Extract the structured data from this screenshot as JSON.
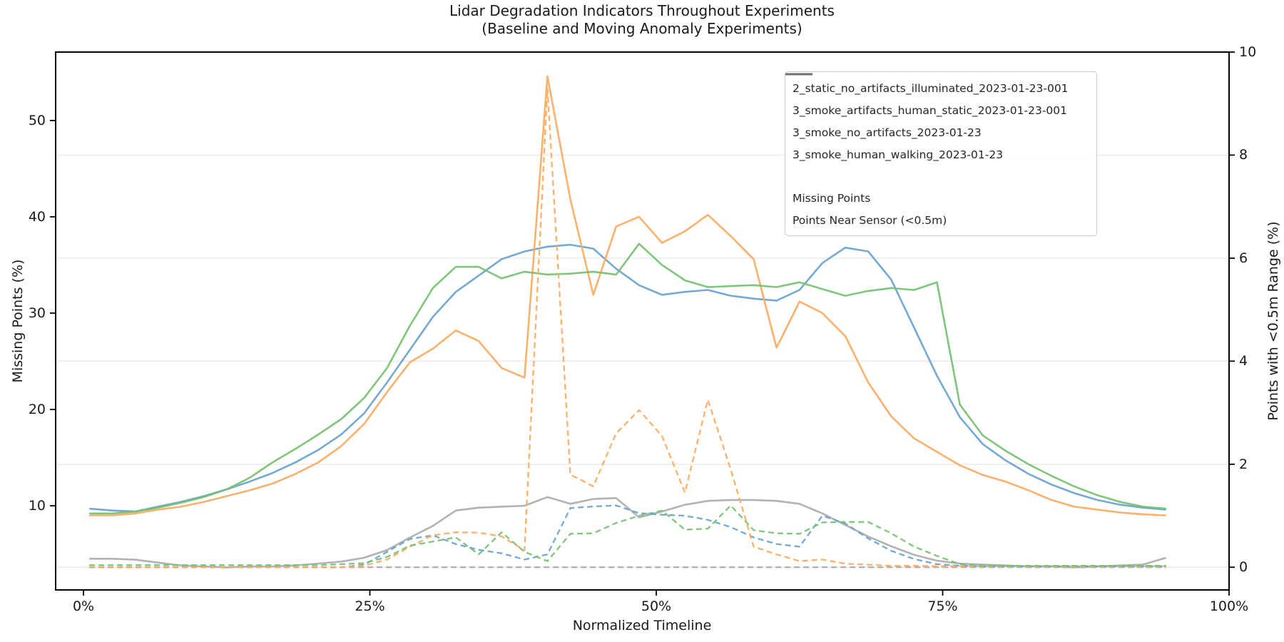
{
  "title": {
    "line1": "Lidar Degradation Indicators Throughout Experiments",
    "line2": "(Baseline and Moving Anomaly Experiments)"
  },
  "axes": {
    "x": {
      "label": "Normalized Timeline",
      "tick_values": [
        0,
        25,
        50,
        75,
        100
      ],
      "tick_labels": [
        "0%",
        "25%",
        "50%",
        "75%",
        "100%"
      ],
      "lim": [
        -2.43,
        100
      ]
    },
    "y_left": {
      "label": "Missing Points (%)",
      "tick_values": [
        10,
        20,
        30,
        40,
        50
      ],
      "lim": [
        1.26,
        57.1
      ]
    },
    "y_right": {
      "label": "Points with <0.5m Range (%)",
      "tick_values": [
        0,
        2,
        4,
        6,
        8,
        10
      ],
      "lim": [
        -0.44,
        10.0
      ]
    }
  },
  "legend": {
    "entries": [
      {
        "label": "2_static_no_artifacts_illuminated_2023-01-23-001",
        "color": "#ababab",
        "dash": "solid",
        "spacer": false
      },
      {
        "label": "3_smoke_artifacts_human_static_2023-01-23-001",
        "color": "#68a2cf",
        "dash": "solid",
        "spacer": false
      },
      {
        "label": "3_smoke_no_artifacts_2023-01-23",
        "color": "#fbaa60",
        "dash": "solid",
        "spacer": false
      },
      {
        "label": "3_smoke_human_walking_2023-01-23",
        "color": "#74c06f",
        "dash": "solid",
        "spacer": false
      },
      {
        "label": "",
        "color": "",
        "dash": "none",
        "spacer": true
      },
      {
        "label": "Missing Points",
        "color": "#6e6e6e",
        "dash": "solid",
        "spacer": false
      },
      {
        "label": "Points Near Sensor (<0.5m)",
        "color": "#6e6e6e",
        "dash": "dashed",
        "spacer": false
      }
    ]
  },
  "colors": {
    "grid": "#e7e7e7",
    "spine": "#000000",
    "text": "#1a1a1a",
    "baseline_gray": "#ababab",
    "smoke_static_blue": "#68a2cf",
    "smoke_no_artifacts_orange": "#fbaa60",
    "smoke_walking_green": "#74c06f",
    "metric_gray": "#6e6e6e"
  },
  "chart_data": {
    "type": "line",
    "title": "Lidar Degradation Indicators Throughout Experiments (Baseline and Moving Anomaly Experiments)",
    "xlabel": "Normalized Timeline",
    "ylabel_left": "Missing Points (%)",
    "ylabel_right": "Points with <0.5m Range (%)",
    "grid": "horizontal-from-right-axis",
    "legend_position": "upper right",
    "x_units": "percent of normalized timeline",
    "x": [
      0.5,
      2.5,
      4.5,
      6.5,
      8.5,
      10.5,
      12.5,
      14.5,
      16.5,
      18.5,
      20.5,
      22.5,
      24.5,
      26.5,
      28.5,
      30.5,
      32.5,
      34.5,
      36.5,
      38.5,
      40.5,
      42.5,
      44.5,
      46.5,
      48.5,
      50.5,
      52.5,
      54.5,
      56.5,
      58.5,
      60.5,
      62.5,
      64.5,
      66.5,
      68.5,
      70.5,
      72.5,
      74.5,
      76.5,
      78.5,
      80.5,
      82.5,
      84.5,
      86.5,
      88.5,
      90.5,
      92.5,
      94.5
    ],
    "series": [
      {
        "name": "2_static_no_artifacts_illuminated_2023-01-23-001",
        "metric": "Missing Points",
        "axis": "left",
        "style": "solid",
        "color": "#ababab",
        "values": [
          4.5,
          4.5,
          4.4,
          4.1,
          3.8,
          3.7,
          3.6,
          3.7,
          3.7,
          3.8,
          4.0,
          4.2,
          4.6,
          5.4,
          6.7,
          7.9,
          9.5,
          9.8,
          9.9,
          10.0,
          10.9,
          10.2,
          10.7,
          10.8,
          8.8,
          9.4,
          10.1,
          10.5,
          10.6,
          10.6,
          10.5,
          10.2,
          9.2,
          8.0,
          6.8,
          5.8,
          4.9,
          4.3,
          4.0,
          3.9,
          3.8,
          3.7,
          3.7,
          3.6,
          3.7,
          3.8,
          3.9,
          4.6
        ]
      },
      {
        "name": "3_smoke_artifacts_human_static_2023-01-23-001",
        "metric": "Missing Points",
        "axis": "left",
        "style": "solid",
        "color": "#68a2cf",
        "values": [
          9.7,
          9.5,
          9.4,
          9.9,
          10.4,
          11.0,
          11.7,
          12.5,
          13.4,
          14.5,
          15.8,
          17.4,
          19.6,
          22.8,
          26.2,
          29.6,
          32.2,
          33.9,
          35.6,
          36.4,
          36.9,
          37.1,
          36.7,
          34.6,
          32.9,
          31.9,
          32.2,
          32.4,
          31.8,
          31.5,
          31.3,
          32.4,
          35.2,
          36.8,
          36.4,
          33.5,
          28.5,
          23.5,
          19.2,
          16.4,
          14.7,
          13.3,
          12.2,
          11.3,
          10.6,
          10.1,
          9.8,
          9.6
        ]
      },
      {
        "name": "3_smoke_no_artifacts_2023-01-23",
        "metric": "Missing Points",
        "axis": "left",
        "style": "solid",
        "color": "#fbaa60",
        "values": [
          9.0,
          9.0,
          9.2,
          9.6,
          9.9,
          10.4,
          11.0,
          11.6,
          12.3,
          13.3,
          14.5,
          16.2,
          18.5,
          21.8,
          24.9,
          26.3,
          28.2,
          27.1,
          24.3,
          23.3,
          54.6,
          41.8,
          31.9,
          39.0,
          40.0,
          37.3,
          38.5,
          40.2,
          38.0,
          35.6,
          26.4,
          31.2,
          30.0,
          27.6,
          22.8,
          19.3,
          17.0,
          15.6,
          14.2,
          13.2,
          12.5,
          11.6,
          10.6,
          9.9,
          9.6,
          9.3,
          9.1,
          9.0
        ]
      },
      {
        "name": "3_smoke_human_walking_2023-01-23",
        "metric": "Missing Points",
        "axis": "left",
        "style": "solid",
        "color": "#74c06f",
        "values": [
          9.2,
          9.2,
          9.4,
          9.8,
          10.3,
          10.9,
          11.7,
          12.9,
          14.5,
          15.9,
          17.4,
          19.0,
          21.2,
          24.3,
          28.7,
          32.6,
          34.8,
          34.8,
          33.6,
          34.3,
          34.0,
          34.1,
          34.3,
          34.0,
          37.2,
          35.0,
          33.4,
          32.7,
          32.8,
          32.9,
          32.7,
          33.2,
          32.5,
          31.8,
          32.3,
          32.6,
          32.4,
          33.2,
          20.5,
          17.3,
          15.7,
          14.3,
          13.1,
          12.0,
          11.1,
          10.4,
          9.9,
          9.7
        ]
      },
      {
        "name": "2_static_no_artifacts_illuminated_2023-01-23-001",
        "metric": "Points Near Sensor (<0.5m)",
        "axis": "right",
        "style": "dashed",
        "color": "#ababab",
        "values": [
          0,
          0,
          0,
          0,
          0,
          0,
          0,
          0,
          0,
          0,
          0,
          0,
          0,
          0,
          0,
          0,
          0,
          0,
          0,
          0,
          0,
          0,
          0,
          0,
          0,
          0,
          0,
          0,
          0,
          0,
          0,
          0,
          0,
          0,
          0,
          0,
          0,
          0,
          0,
          0,
          0,
          0,
          0,
          0,
          0,
          0,
          0,
          0
        ]
      },
      {
        "name": "3_smoke_artifacts_human_static_2023-01-23-001",
        "metric": "Points Near Sensor (<0.5m)",
        "axis": "right",
        "style": "dashed",
        "color": "#68a2cf",
        "values": [
          0,
          0,
          0,
          0,
          0,
          0,
          0,
          0,
          0,
          0,
          0,
          0,
          0.05,
          0.3,
          0.55,
          0.62,
          0.45,
          0.34,
          0.27,
          0.15,
          0.25,
          1.15,
          1.18,
          1.2,
          1.05,
          1.02,
          1.0,
          0.92,
          0.78,
          0.58,
          0.45,
          0.4,
          1.0,
          0.85,
          0.56,
          0.32,
          0.16,
          0.06,
          0.03,
          0.02,
          0.02,
          0.02,
          0.02,
          0.02,
          0.02,
          0.02,
          0.02,
          0.02
        ]
      },
      {
        "name": "3_smoke_no_artifacts_2023-01-23",
        "metric": "Points Near Sensor (<0.5m)",
        "axis": "right",
        "style": "dashed",
        "color": "#fbaa60",
        "values": [
          0,
          0,
          0,
          0,
          0,
          0,
          0,
          0,
          0,
          0,
          0,
          0,
          0.03,
          0.15,
          0.4,
          0.62,
          0.68,
          0.67,
          0.6,
          0.33,
          9.3,
          1.8,
          1.57,
          2.6,
          3.05,
          2.55,
          1.45,
          3.25,
          1.9,
          0.4,
          0.25,
          0.12,
          0.15,
          0.07,
          0.05,
          0.03,
          0.03,
          0.02,
          0.02,
          0.02,
          0.02,
          0.02,
          0.02,
          0.02,
          0.02,
          0.02,
          0.02,
          0.02
        ]
      },
      {
        "name": "3_smoke_human_walking_2023-01-23",
        "metric": "Points Near Sensor (<0.5m)",
        "axis": "right",
        "style": "dashed",
        "color": "#74c06f",
        "values": [
          0.04,
          0.04,
          0.04,
          0.04,
          0.04,
          0.04,
          0.04,
          0.04,
          0.04,
          0.04,
          0.04,
          0.06,
          0.08,
          0.2,
          0.42,
          0.5,
          0.58,
          0.25,
          0.68,
          0.3,
          0.12,
          0.65,
          0.66,
          0.86,
          1.0,
          1.1,
          0.73,
          0.75,
          1.2,
          0.72,
          0.66,
          0.65,
          0.87,
          0.88,
          0.88,
          0.66,
          0.4,
          0.22,
          0.06,
          0.03,
          0.03,
          0.03,
          0.03,
          0.03,
          0.03,
          0.03,
          0.03,
          0.03
        ]
      }
    ]
  }
}
